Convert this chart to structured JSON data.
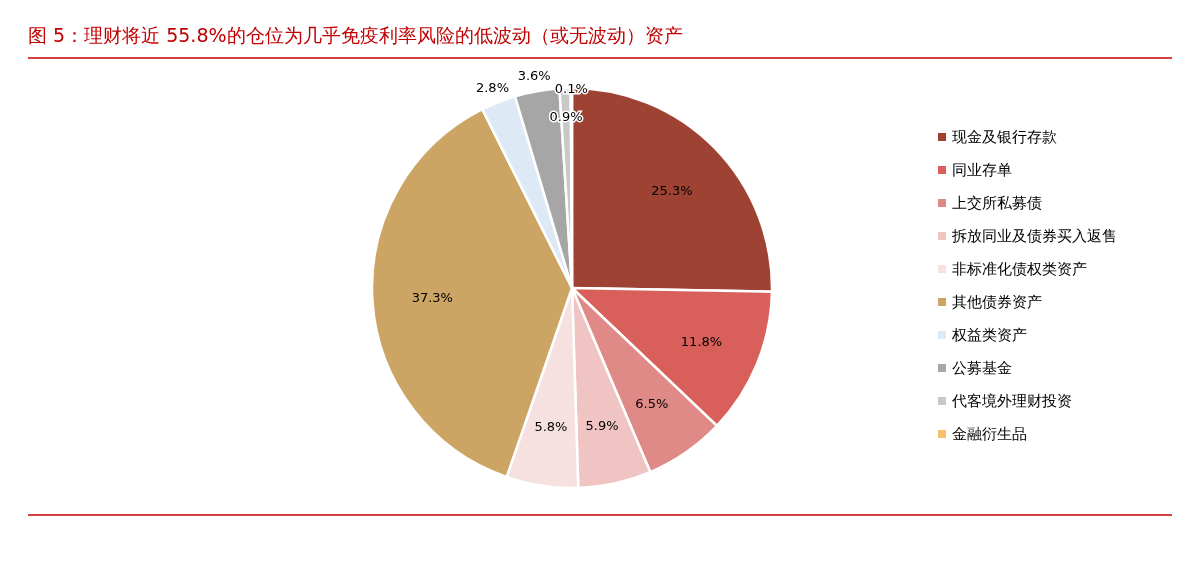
{
  "chart_data": {
    "type": "pie",
    "title": "图 5：理财将近 55.8%的仓位为几乎免疫利率风险的低波动（或无波动）资产",
    "categories": [
      "现金及银行存款",
      "同业存单",
      "上交所私募债",
      "拆放同业及债券买入返售",
      "非标准化债权类资产",
      "其他债券资产",
      "权益类资产",
      "公募基金",
      "代客境外理财投资",
      "金融衍生品"
    ],
    "values": [
      25.3,
      11.8,
      6.5,
      5.9,
      5.8,
      37.3,
      2.8,
      3.6,
      0.9,
      0.1
    ],
    "colors": [
      "#9e4334",
      "#d9605a",
      "#e08a87",
      "#f0c4c3",
      "#f7e0e0",
      "#cca464",
      "#dde9f4",
      "#a6a6a6",
      "#c8c8c8",
      "#f5c26b"
    ],
    "value_labels": [
      "25.3%",
      "11.8%",
      "6.5%",
      "5.9%",
      "5.8%",
      "37.3%",
      "2.8%",
      "3.6%",
      "0.9%",
      "0.1%"
    ],
    "legend": "right"
  }
}
